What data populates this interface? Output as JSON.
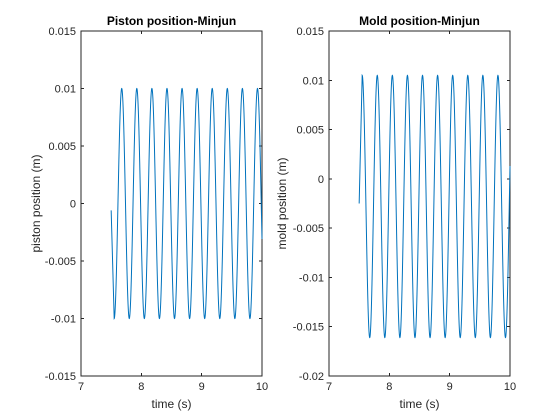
{
  "chart_data": [
    {
      "type": "line",
      "title": "Piston position-Minjun",
      "xlabel": "time (s)",
      "ylabel": "piston position (m)",
      "xlim": [
        7,
        10
      ],
      "ylim": [
        -0.015,
        0.015
      ],
      "xticks": [
        7,
        8,
        9,
        10
      ],
      "xtick_labels": [
        "7",
        "8",
        "9",
        "10"
      ],
      "yticks": [
        -0.015,
        -0.01,
        -0.005,
        0,
        0.005,
        0.01,
        0.015
      ],
      "ytick_labels": [
        "-0.015",
        "-0.01",
        "-0.005",
        "0",
        "0.005",
        "0.01",
        "0.015"
      ],
      "grid": false,
      "series": [
        {
          "color": "#0072BD",
          "t_start": 7.5,
          "t_end": 10.0,
          "start_value": -0.0006,
          "amplitude": 0.01,
          "offset": 0.0,
          "frequency_hz": 4.0,
          "first_min_t": 7.55,
          "first_max_t": 7.68
        }
      ]
    },
    {
      "type": "line",
      "title": "Mold position-Minjun",
      "xlabel": "time (s)",
      "ylabel": "mold position (m)",
      "xlim": [
        7,
        10
      ],
      "ylim": [
        -0.02,
        0.015
      ],
      "xticks": [
        7,
        8,
        9,
        10
      ],
      "xtick_labels": [
        "7",
        "8",
        "9",
        "10"
      ],
      "yticks": [
        -0.02,
        -0.015,
        -0.01,
        -0.005,
        0,
        0.005,
        0.01,
        0.015
      ],
      "ytick_labels": [
        "-0.02",
        "-0.015",
        "-0.01",
        "-0.005",
        "0",
        "0.005",
        "0.01",
        "0.015"
      ],
      "grid": false,
      "series": [
        {
          "color": "#0072BD",
          "t_start": 7.5,
          "t_end": 10.0,
          "start_value": -0.0025,
          "amplitude": 0.0133,
          "offset": -0.0028,
          "frequency_hz": 4.0,
          "first_max_t": 7.55,
          "first_min_t": 7.68
        }
      ]
    }
  ]
}
